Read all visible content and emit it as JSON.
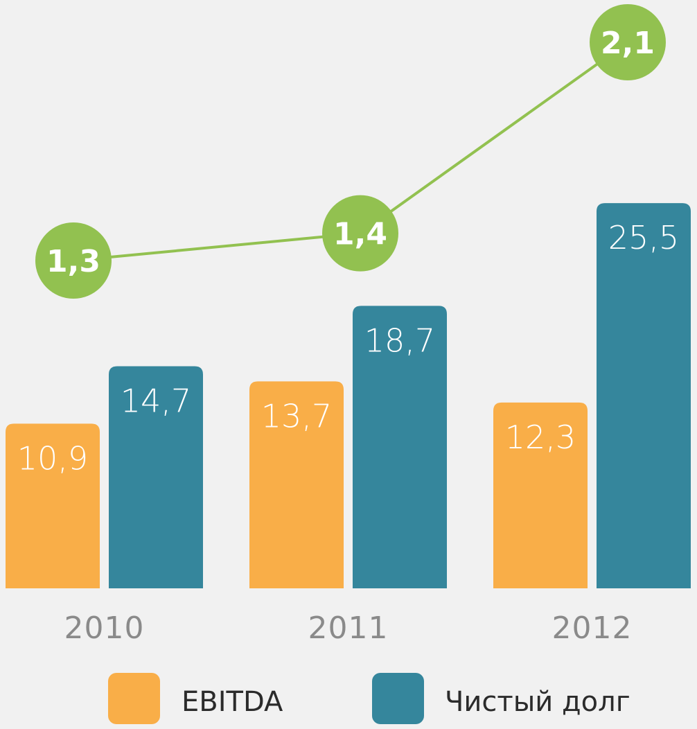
{
  "chart_data": {
    "type": "bar",
    "categories": [
      "2010",
      "2011",
      "2012"
    ],
    "series": [
      {
        "name": "EBITDA",
        "values": [
          10.9,
          13.7,
          12.3
        ],
        "labels": [
          "10,9",
          "13,7",
          "12,3"
        ],
        "color": "#f9ae48"
      },
      {
        "name": "Чистый долг",
        "values": [
          14.7,
          18.7,
          25.5
        ],
        "labels": [
          "14,7",
          "18,7",
          "25,5"
        ],
        "color": "#35869c"
      }
    ],
    "ratio_line": {
      "values": [
        1.3,
        1.4,
        2.1
      ],
      "labels": [
        "1,3",
        "1,4",
        "2,1"
      ],
      "color": "#92c150"
    },
    "legend_position": "bottom",
    "grid": false
  }
}
